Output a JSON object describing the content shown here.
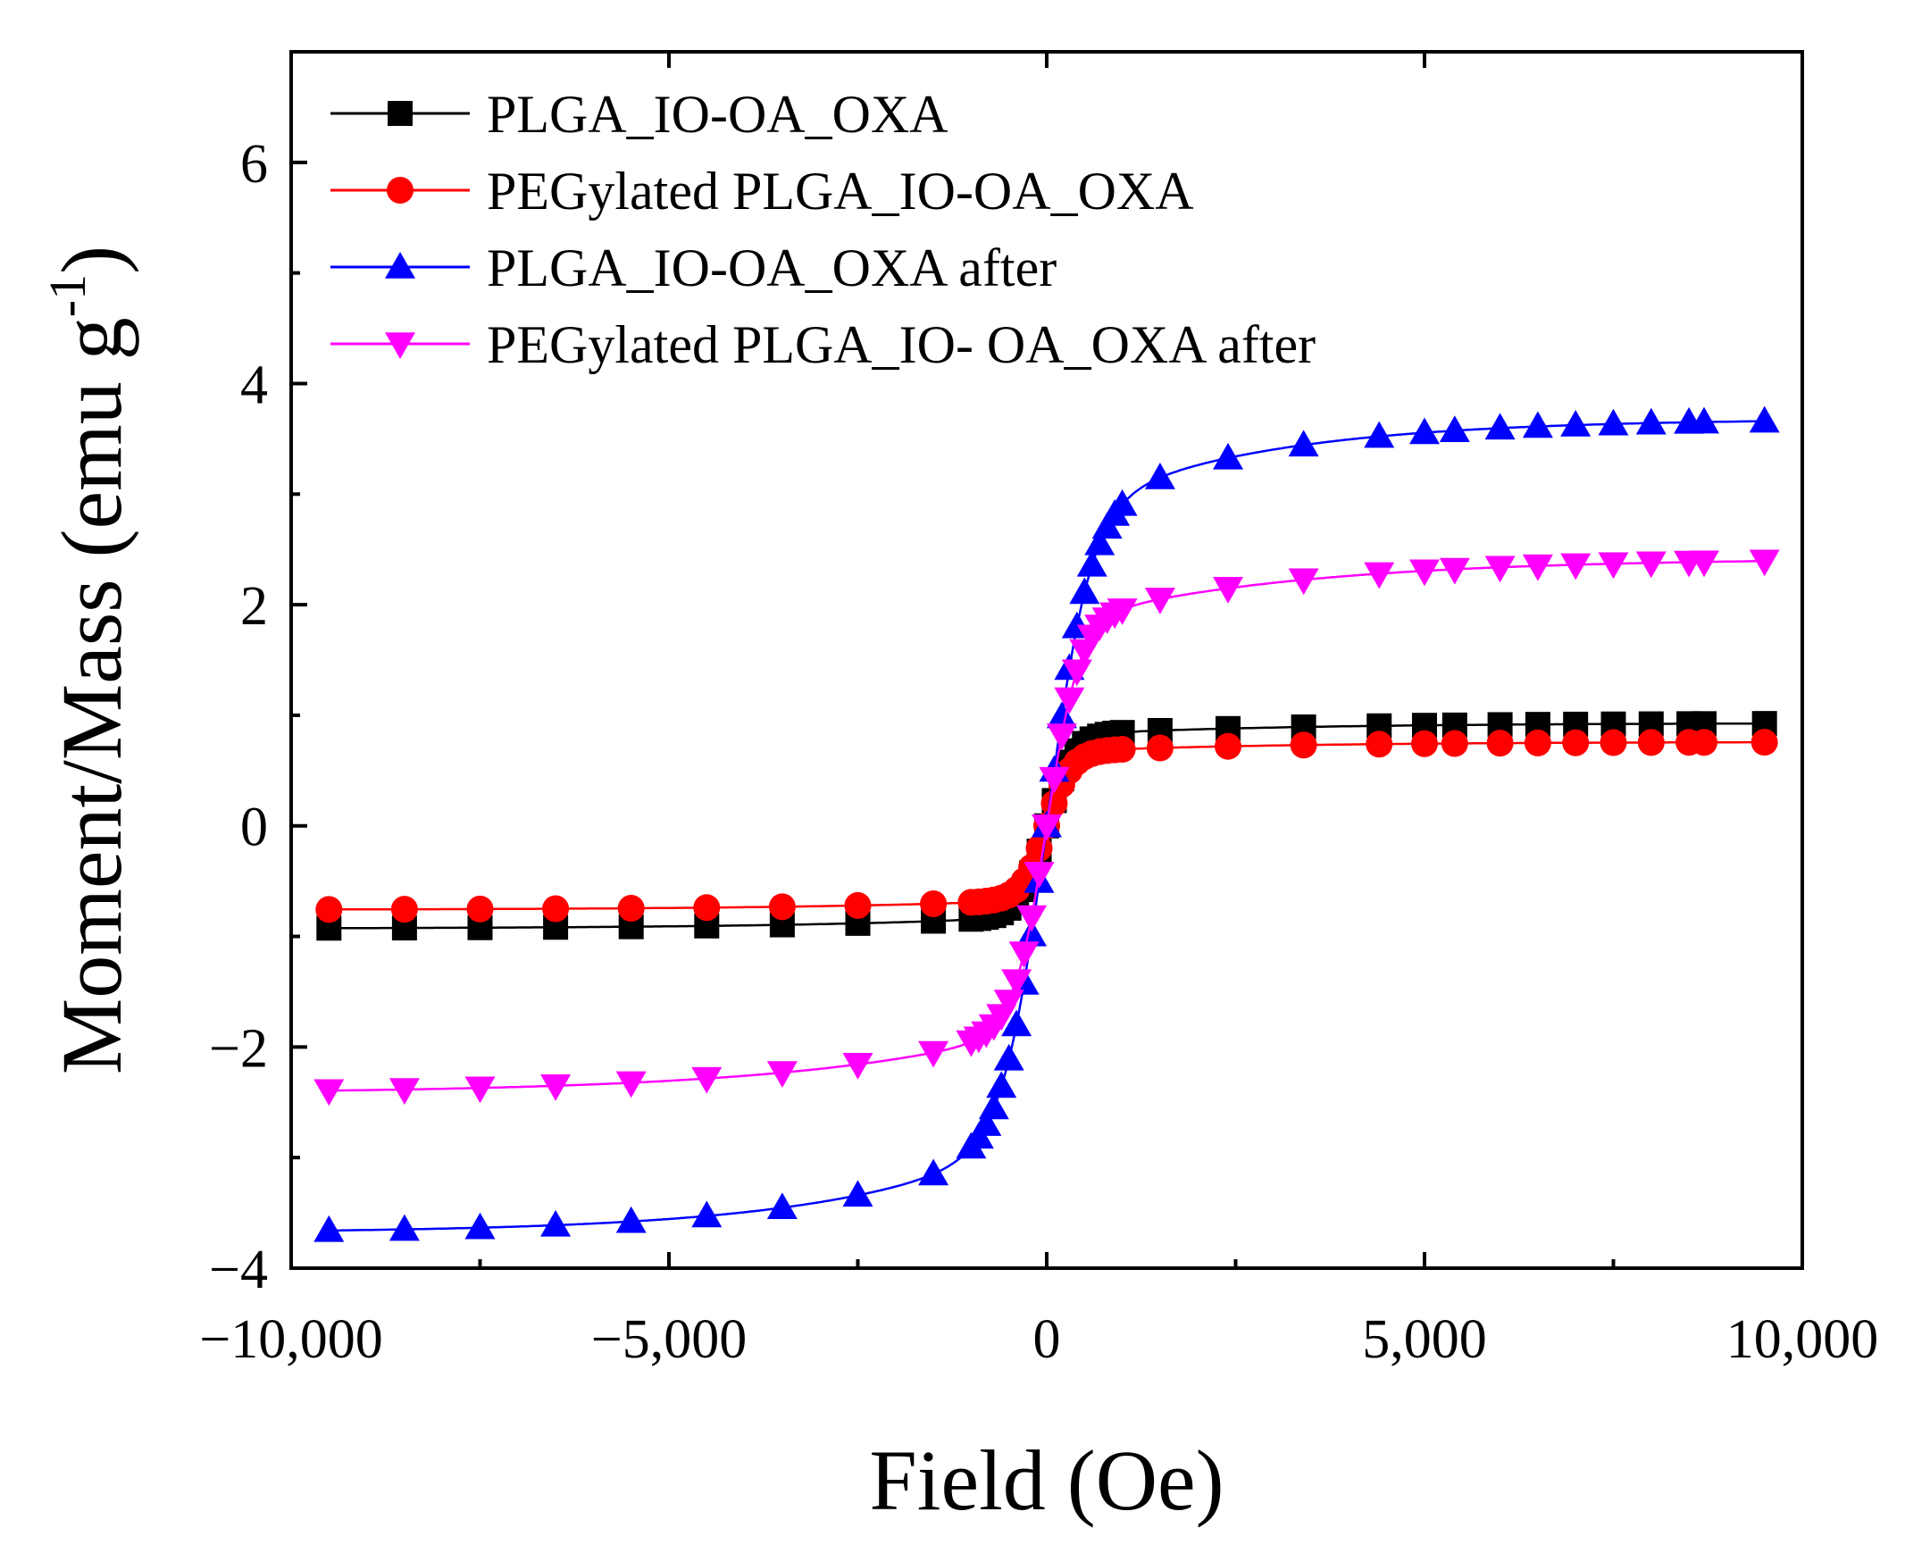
{
  "chart_data": {
    "type": "line",
    "title": "",
    "xlabel": "Field (Oe)",
    "ylabel": "Moment/Mass (emu g",
    "ylabel_sup": "-1",
    "ylabel_close": ")",
    "xlim": [
      -10000,
      10000
    ],
    "ylim": [
      -4,
      7
    ],
    "xticks": [
      -10000,
      -5000,
      0,
      5000,
      10000
    ],
    "xtick_labels": [
      "−10,000",
      "−5,000",
      "0",
      "5,000",
      "10,000"
    ],
    "yticks": [
      -4,
      -2,
      0,
      2,
      4,
      6
    ],
    "ytick_labels": [
      "−4",
      "−2",
      "0",
      "2",
      "4",
      "6"
    ],
    "legend_position": "top-left",
    "series": [
      {
        "name": "PLGA_IO-OA_OXA",
        "color": "#000000",
        "marker": "square",
        "Ms": 0.93,
        "k": 350,
        "a": 0.12,
        "b": 3000,
        "x": [
          -9500,
          -8500,
          -7500,
          -6500,
          -5500,
          -4500,
          -3500,
          -2500,
          -1500,
          -1000,
          -900,
          -800,
          -700,
          -600,
          -500,
          -400,
          -300,
          -200,
          -100,
          0,
          100,
          200,
          300,
          400,
          500,
          600,
          700,
          800,
          900,
          1000,
          1500,
          2400,
          3400,
          4400,
          5000,
          5400,
          6000,
          6500,
          7000,
          7500,
          8000,
          8500,
          8700,
          9500
        ]
      },
      {
        "name": "PEGylated PLGA_IO-OA_OXA",
        "color": "#ff0000",
        "marker": "circle",
        "Ms": 0.76,
        "k": 320,
        "a": 0.12,
        "b": 3000,
        "x": [
          -9500,
          -8500,
          -7500,
          -6500,
          -5500,
          -4500,
          -3500,
          -2500,
          -1500,
          -1000,
          -900,
          -800,
          -700,
          -600,
          -500,
          -400,
          -300,
          -200,
          -100,
          0,
          100,
          200,
          300,
          400,
          500,
          600,
          700,
          800,
          900,
          1000,
          1500,
          2400,
          3400,
          4400,
          5000,
          5400,
          6000,
          6500,
          7000,
          7500,
          8000,
          8500,
          8700,
          9500
        ]
      },
      {
        "name": "PLGA_IO-OA_OXA after",
        "color": "#0000ff",
        "marker": "triangle-up",
        "Ms": 3.68,
        "k": 550,
        "a": 0.25,
        "b": 2500,
        "x": [
          -9500,
          -8500,
          -7500,
          -6500,
          -5500,
          -4500,
          -3500,
          -2500,
          -1500,
          -1000,
          -900,
          -800,
          -700,
          -600,
          -500,
          -400,
          -300,
          -200,
          -100,
          0,
          100,
          200,
          300,
          400,
          500,
          600,
          700,
          800,
          900,
          1000,
          1500,
          2400,
          3400,
          4400,
          5000,
          5400,
          6000,
          6500,
          7000,
          7500,
          8000,
          8500,
          8700,
          9500
        ]
      },
      {
        "name": "PEGylated PLGA_IO- OA_OXA after",
        "color": "#ff00ff",
        "marker": "triangle-down",
        "Ms": 2.42,
        "k": 420,
        "a": 0.25,
        "b": 3000,
        "x": [
          -9500,
          -8500,
          -7500,
          -6500,
          -5500,
          -4500,
          -3500,
          -2500,
          -1500,
          -1000,
          -900,
          -800,
          -700,
          -600,
          -500,
          -400,
          -300,
          -200,
          -100,
          0,
          100,
          200,
          300,
          400,
          500,
          600,
          700,
          800,
          900,
          1000,
          1500,
          2400,
          3400,
          4400,
          5000,
          5400,
          6000,
          6500,
          7000,
          7500,
          8000,
          8500,
          8700,
          9500
        ]
      }
    ]
  }
}
